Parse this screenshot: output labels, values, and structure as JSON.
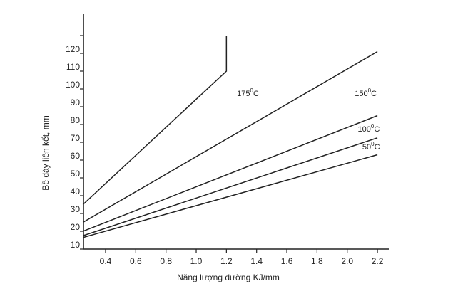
{
  "chart_data": {
    "type": "line",
    "title": "",
    "xlabel": "Năng lượng đường KJ/mm",
    "ylabel": "Bề dày liên kết, mm",
    "xlim": [
      0.25,
      2.3
    ],
    "ylim": [
      10,
      130
    ],
    "grid": false,
    "xticks": [
      "0.4",
      "0.6",
      "0.8",
      "1.0",
      "1.2",
      "1.4",
      "1.6",
      "1.8",
      "2.0",
      "2.2"
    ],
    "yticks": [
      "10",
      "20",
      "30",
      "40",
      "50",
      "60",
      "70",
      "80",
      "90",
      "100",
      "110",
      "120"
    ],
    "series": [
      {
        "name": "175",
        "label": "175°C",
        "points": [
          [
            0.25,
            35
          ],
          [
            1.2,
            110
          ],
          [
            1.2,
            130
          ]
        ],
        "label_at": [
          1.27,
          96
        ]
      },
      {
        "name": "150",
        "label": "150°C",
        "points": [
          [
            0.25,
            25
          ],
          [
            2.2,
            121
          ]
        ],
        "label_at": [
          2.05,
          96
        ]
      },
      {
        "name": "100",
        "label": "100°C",
        "points": [
          [
            0.25,
            20
          ],
          [
            2.2,
            85
          ]
        ],
        "label_at": [
          2.07,
          76
        ]
      },
      {
        "name": "",
        "label": "",
        "points": [
          [
            0.25,
            17.5
          ],
          [
            2.2,
            72.5
          ]
        ]
      },
      {
        "name": "50",
        "label": "50°C",
        "points": [
          [
            0.25,
            16.5
          ],
          [
            2.2,
            63
          ]
        ],
        "label_at": [
          2.1,
          66
        ]
      }
    ]
  }
}
